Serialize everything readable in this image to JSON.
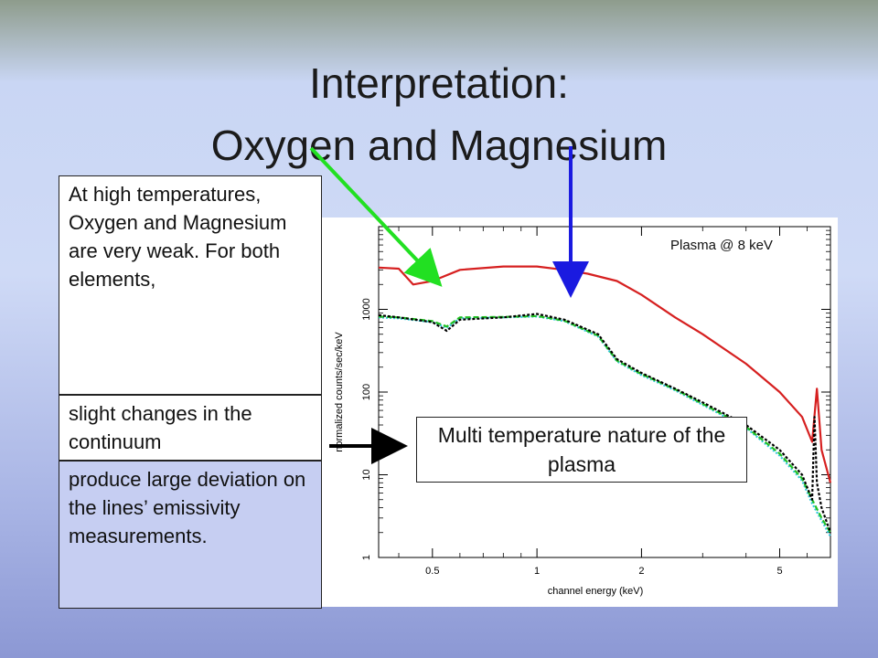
{
  "slide": {
    "title_line1": "Interpretation:",
    "title_line2": "Oxygen and Magnesium",
    "callout_top": "At high temperatures, Oxygen and Magnesium are very weak. For both elements,",
    "callout_mid": "slight changes in the continuum",
    "callout_bottom": "produce large deviation on the lines’ emissivity measurements.",
    "box_label": "Multi temperature nature of the plasma",
    "plot_annotation": "Plasma @ 8 keV"
  },
  "colors": {
    "data_red": "#d62020",
    "data_black": "#000000",
    "data_green": "#22c022",
    "data_cyan": "#30c8e0",
    "arrow_green": "#22e022",
    "arrow_blue": "#1a1ae0",
    "arrow_black": "#000000"
  },
  "chart_data": {
    "type": "line",
    "xlabel": "channel energy (keV)",
    "ylabel": "normalized counts/sec/keV",
    "xscale": "log",
    "yscale": "log",
    "xlim": [
      0.35,
      7.0
    ],
    "ylim": [
      1,
      10000
    ],
    "x_ticks": [
      0.5,
      1,
      2,
      5
    ],
    "x_tick_labels": [
      "0.5",
      "1",
      "2",
      "5"
    ],
    "y_ticks": [
      1,
      10,
      100,
      1000
    ],
    "y_tick_labels": [
      "1",
      "10",
      "100",
      "1000"
    ],
    "series": [
      {
        "color": "red",
        "x": [
          0.35,
          0.4,
          0.44,
          0.5,
          0.6,
          0.8,
          1.0,
          1.2,
          1.4,
          1.7,
          2.0,
          2.5,
          3.0,
          4.0,
          5.0,
          5.8,
          6.2,
          6.4,
          6.6,
          7.0
        ],
        "y": [
          3200,
          3100,
          2000,
          2200,
          3000,
          3300,
          3300,
          3000,
          2700,
          2200,
          1500,
          800,
          500,
          220,
          100,
          50,
          25,
          110,
          20,
          8
        ]
      },
      {
        "color": "black",
        "x": [
          0.35,
          0.4,
          0.5,
          0.55,
          0.6,
          0.8,
          1.0,
          1.2,
          1.5,
          1.7,
          2.0,
          2.5,
          3.0,
          4.0,
          5.0,
          5.8,
          6.2,
          6.3,
          6.4,
          6.6,
          7.0
        ],
        "y": [
          850,
          800,
          700,
          550,
          750,
          800,
          880,
          750,
          500,
          250,
          170,
          110,
          75,
          40,
          20,
          10,
          5,
          50,
          8,
          4,
          2
        ]
      },
      {
        "color": "green",
        "x": [
          0.35,
          0.4,
          0.5,
          0.55,
          0.6,
          0.8,
          1.0,
          1.2,
          1.5,
          1.7,
          2.0,
          2.5,
          3.0,
          4.0,
          5.0,
          5.8,
          6.2,
          6.6,
          7.0
        ],
        "y": [
          820,
          800,
          720,
          620,
          800,
          810,
          830,
          730,
          480,
          240,
          165,
          108,
          72,
          38,
          18,
          9,
          5,
          3,
          2
        ]
      },
      {
        "color": "cyan",
        "x": [
          0.35,
          0.4,
          0.5,
          0.55,
          0.6,
          0.8,
          1.0,
          1.2,
          1.5,
          1.7,
          2.0,
          2.5,
          3.0,
          4.0,
          5.0,
          5.8,
          6.2,
          6.6,
          7.0
        ],
        "y": [
          800,
          780,
          700,
          600,
          780,
          800,
          820,
          720,
          470,
          235,
          160,
          105,
          70,
          37,
          17,
          8.5,
          4.5,
          2.8,
          1.8
        ]
      }
    ]
  }
}
